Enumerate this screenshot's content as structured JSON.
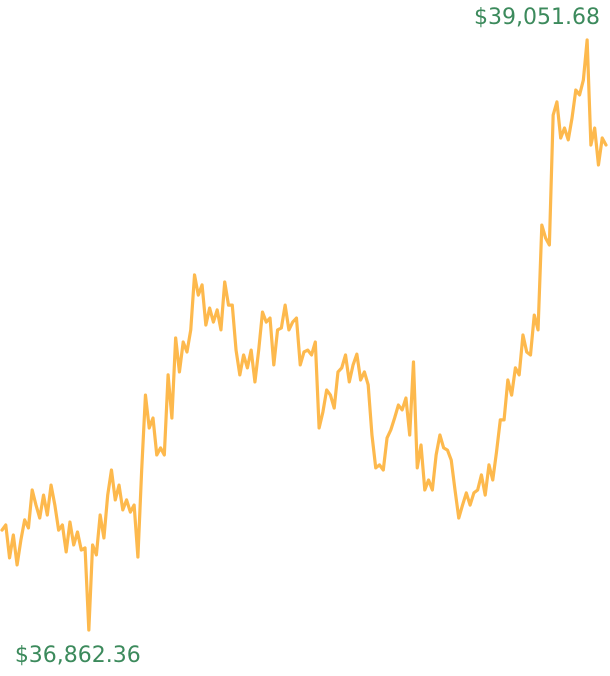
{
  "chart_data": {
    "type": "line",
    "color": "#fdb94d",
    "label_color": "#3c8a5c",
    "values": [
      37233,
      37252,
      37130,
      37215,
      37104,
      37196,
      37271,
      37241,
      37382,
      37326,
      37278,
      37363,
      37289,
      37400,
      37326,
      37233,
      37252,
      37152,
      37263,
      37178,
      37226,
      37159,
      37167,
      36862.36,
      37178,
      37141,
      37289,
      37204,
      37363,
      37456,
      37345,
      37400,
      37308,
      37345,
      37300,
      37326,
      37133,
      37456,
      37734,
      37612,
      37649,
      37512,
      37538,
      37512,
      37809,
      37649,
      37946,
      37820,
      37931,
      37894,
      37976,
      38180,
      38105,
      38143,
      37994,
      38057,
      38005,
      38050,
      37976,
      38154,
      38068,
      38068,
      37901,
      37809,
      37883,
      37835,
      37901,
      37783,
      37901,
      38042,
      38005,
      38020,
      37846,
      37976,
      37983,
      38068,
      37976,
      38005,
      38020,
      37846,
      37894,
      37901,
      37883,
      37931,
      37612,
      37671,
      37753,
      37734,
      37686,
      37820,
      37835,
      37883,
      37783,
      37846,
      37886,
      37790,
      37820,
      37772,
      37586,
      37464,
      37475,
      37456,
      37575,
      37605,
      37649,
      37697,
      37679,
      37723,
      37586,
      37857,
      37464,
      37549,
      37382,
      37419,
      37382,
      37512,
      37586,
      37538,
      37530,
      37493,
      37382,
      37278,
      37326,
      37371,
      37326,
      37371,
      37382,
      37438,
      37363,
      37475,
      37419,
      37523,
      37642,
      37642,
      37790,
      37734,
      37835,
      37809,
      37957,
      37894,
      37883,
      38031,
      37976,
      38365,
      38317,
      38291,
      38773,
      38822,
      38688,
      38725,
      38681,
      38762,
      38866,
      38848,
      38903,
      39051.68,
      38662,
      38725,
      38588,
      38688,
      38662
    ],
    "value_labels": [
      null,
      null,
      null,
      null,
      null,
      null,
      null,
      null,
      null,
      null,
      null,
      null,
      null,
      null,
      null,
      null,
      null,
      null,
      null,
      null,
      null,
      null,
      null,
      "$36,862.36",
      null,
      null,
      null,
      null,
      null,
      null,
      null,
      null,
      null,
      null,
      null,
      null,
      null,
      null,
      null,
      null,
      null,
      null,
      null,
      null,
      null,
      null,
      null,
      null,
      null,
      null,
      null,
      null,
      null,
      null,
      null,
      null,
      null,
      null,
      null,
      null,
      null,
      null,
      null,
      null,
      null,
      null,
      null,
      null,
      null,
      null,
      null,
      null,
      null,
      null,
      null,
      null,
      null,
      null,
      null,
      null,
      null,
      null,
      null,
      null,
      null,
      null,
      null,
      null,
      null,
      null,
      null,
      null,
      null,
      null,
      null,
      null,
      null,
      null,
      null,
      null,
      null,
      null,
      null,
      null,
      null,
      null,
      null,
      null,
      null,
      null,
      null,
      null,
      null,
      null,
      null,
      null,
      null,
      null,
      null,
      null,
      null,
      null,
      null,
      null,
      null,
      null,
      null,
      null,
      null,
      null,
      null,
      null,
      null,
      null,
      null,
      null,
      null,
      null,
      null,
      null,
      null,
      null,
      null,
      null,
      null,
      null,
      null,
      null,
      null,
      null,
      null,
      null,
      null,
      null,
      null,
      "$39,051.68",
      null,
      null,
      null,
      null,
      null
    ]
  }
}
